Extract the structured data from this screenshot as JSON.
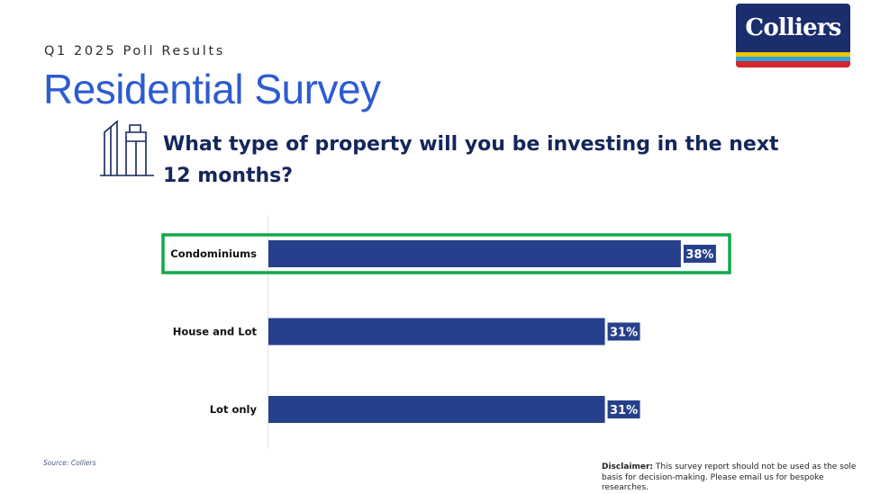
{
  "header": {
    "subtitle": "Q1 2025 Poll Results",
    "title": "Residential Survey",
    "logo_text": "Colliers"
  },
  "question": "What type of property will you be investing in the next 12 months?",
  "chart_data": {
    "type": "bar",
    "orientation": "horizontal",
    "categories": [
      "Condominiums",
      "House and Lot",
      "Lot only"
    ],
    "values": [
      38,
      31,
      31
    ],
    "value_labels": [
      "38%",
      "31%",
      "31%"
    ],
    "unit": "%",
    "xlim": [
      0,
      45
    ],
    "highlighted_category": "Condominiums",
    "bar_color": "#27408b",
    "highlight_color": "#12a84a",
    "grid": false,
    "legend": "none"
  },
  "footer": {
    "source": "Source: Colliers",
    "disclaimer_label": "Disclaimer:",
    "disclaimer_text": " This survey report should not be used as the sole basis for decision-making. Please email us for bespoke researches."
  }
}
